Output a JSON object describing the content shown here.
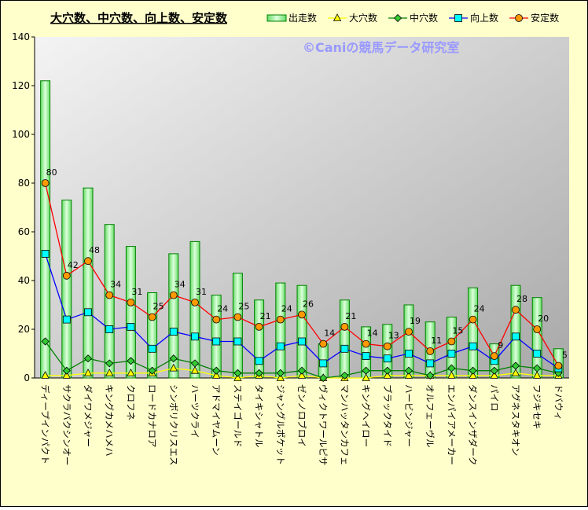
{
  "chart_data": {
    "type": "bar-line",
    "title": "大穴数、中穴数、向上数、安定数",
    "watermark": "©Caniの競馬データ研究室",
    "categories": [
      "ディープインパクト",
      "サクラバクシンオー",
      "ダイワメジャー",
      "キングカメハメハ",
      "クロフネ",
      "ロードカナロア",
      "シンボリクリスエス",
      "ハーツクライ",
      "アドマイヤムーン",
      "ステイゴールド",
      "タイキシャトル",
      "ジャングルポケット",
      "ゼンノロブロイ",
      "ヴィクトワールピサ",
      "マンハッタンカフェ",
      "キングヘイロー",
      "ブラックタイド",
      "ハービンジャー",
      "オルフェーヴル",
      "エンパイアメーカー",
      "ダンスインザダーク",
      "パイロ",
      "アグネスタキオン",
      "フジキセキ",
      "ドバウィ"
    ],
    "series": [
      {
        "name": "出走数",
        "kind": "bar",
        "color": "#008000",
        "fill": "#ccffcc",
        "values": [
          122,
          73,
          78,
          63,
          54,
          35,
          51,
          56,
          34,
          43,
          32,
          39,
          38,
          14,
          32,
          21,
          22,
          30,
          23,
          25,
          37,
          14,
          38,
          33,
          12
        ]
      },
      {
        "name": "大穴数",
        "kind": "line",
        "marker": "triangle",
        "color": "#ffff00",
        "marker_color": "#ffff00",
        "values": [
          1,
          1,
          2,
          2,
          2,
          2,
          4,
          3,
          1,
          0,
          1,
          0,
          1,
          0,
          0,
          0,
          1,
          1,
          1,
          1,
          1,
          1,
          2,
          1,
          1
        ]
      },
      {
        "name": "中穴数",
        "kind": "line",
        "marker": "diamond",
        "color": "#008000",
        "marker_color": "#33cc33",
        "values": [
          15,
          3,
          8,
          6,
          7,
          3,
          8,
          6,
          3,
          2,
          2,
          2,
          3,
          0,
          1,
          3,
          3,
          3,
          1,
          4,
          3,
          3,
          5,
          4,
          2
        ]
      },
      {
        "name": "向上数",
        "kind": "line",
        "marker": "square",
        "color": "#0000ff",
        "marker_color": "#00ffff",
        "values": [
          51,
          24,
          27,
          20,
          21,
          12,
          19,
          17,
          15,
          15,
          7,
          13,
          15,
          6,
          12,
          9,
          8,
          10,
          6,
          10,
          13,
          7,
          17,
          10,
          4
        ]
      },
      {
        "name": "安定数",
        "kind": "line",
        "marker": "circle",
        "color": "#ff0000",
        "marker_color": "#ff9900",
        "labels": true,
        "values": [
          80,
          42,
          48,
          34,
          31,
          25,
          34,
          31,
          24,
          25,
          21,
          24,
          26,
          14,
          21,
          14,
          13,
          19,
          11,
          15,
          24,
          9,
          28,
          20,
          5
        ]
      }
    ],
    "ylim": [
      0,
      140
    ],
    "yticks": [
      0,
      20,
      40,
      60,
      80,
      100,
      120,
      140
    ],
    "grid": false,
    "legend": "top-right"
  }
}
